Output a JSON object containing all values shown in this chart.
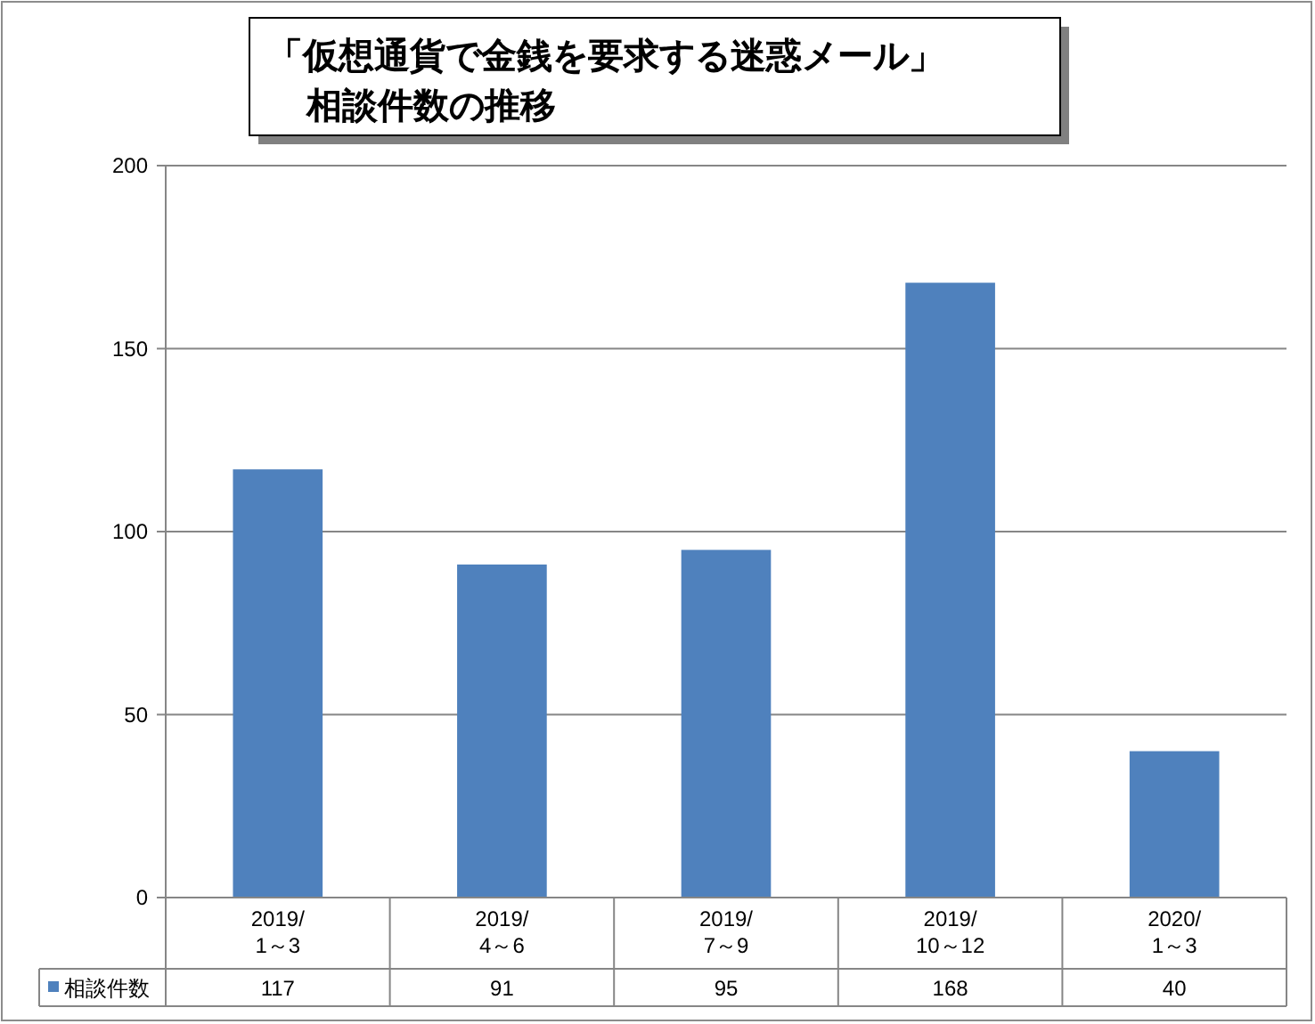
{
  "chart_data": {
    "type": "bar",
    "title": "「仮想通貨で金銭を要求する迷惑メール」",
    "subtitle": "相談件数の推移",
    "categories": [
      "2019/1～3",
      "2019/4～6",
      "2019/7～9",
      "2019/10～12",
      "2020/1～3"
    ],
    "series": [
      {
        "name": "相談件数",
        "color": "#4f81bd",
        "values": [
          117,
          91,
          95,
          168,
          40
        ]
      }
    ],
    "ylim": [
      0,
      200
    ],
    "yticks": [
      0,
      50,
      100,
      150,
      200
    ],
    "grid": "y",
    "legend": "bottom",
    "data_labels": true
  }
}
